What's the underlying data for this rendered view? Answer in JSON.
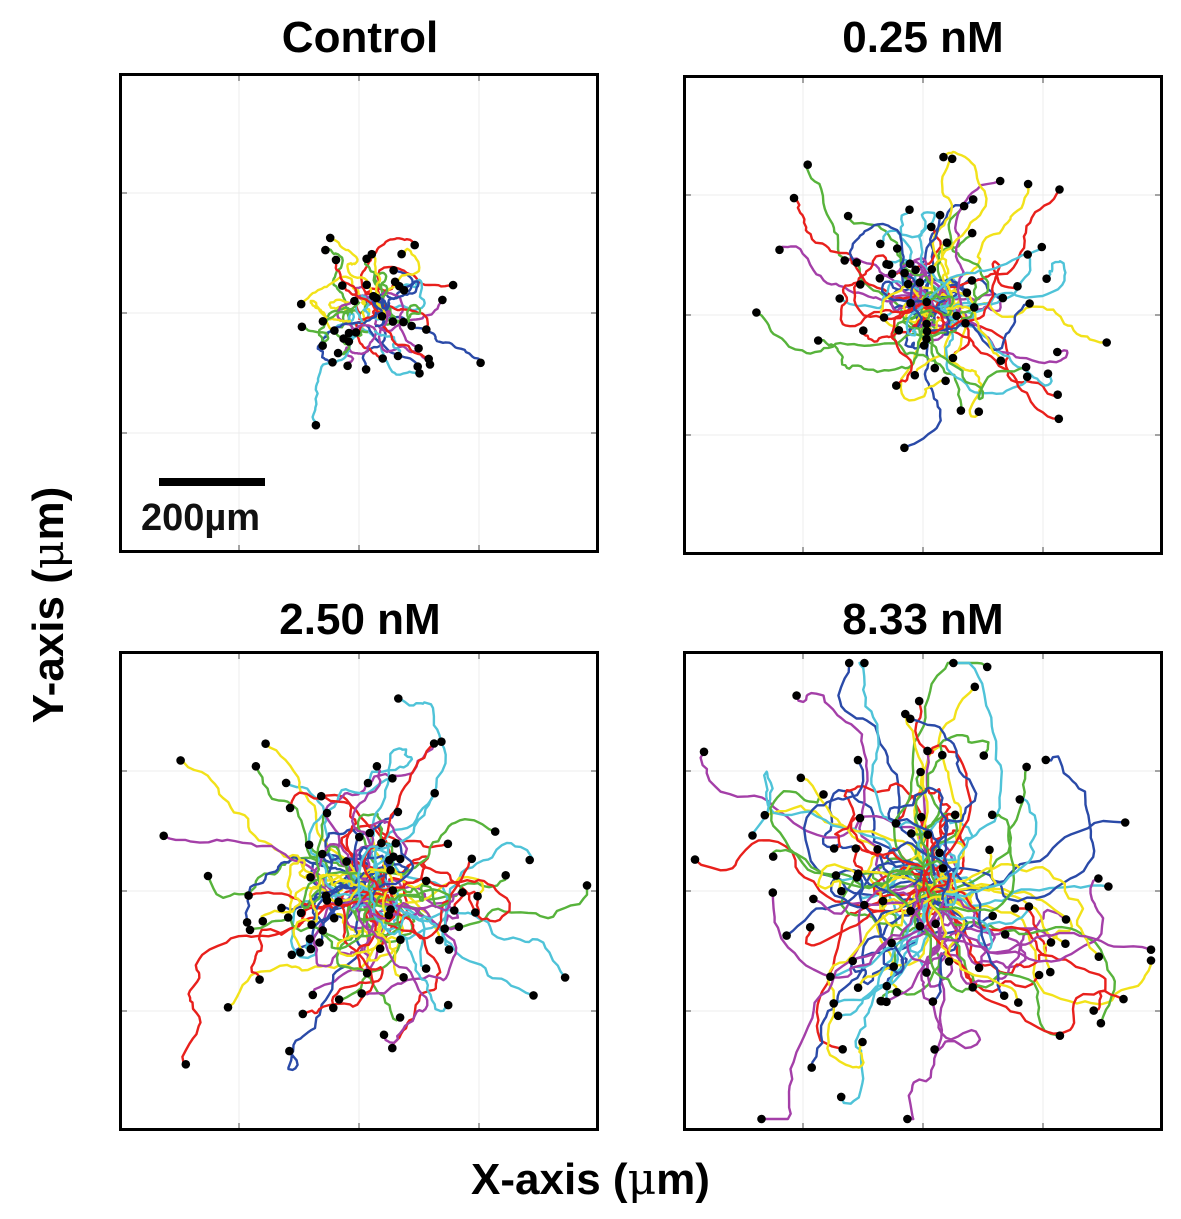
{
  "chart_data": [
    {
      "type": "scatter",
      "title": "Control",
      "n_tracks": 45,
      "spread": 0.55,
      "scale_bar": {
        "label": "200µm",
        "length_um": 200
      },
      "colors": [
        "#e8201c",
        "#2a4aa8",
        "#57b33b",
        "#f2e21a",
        "#a43fa8",
        "#4fc3d8"
      ]
    },
    {
      "type": "scatter",
      "title": "0.25 nM",
      "n_tracks": 70,
      "spread": 0.95,
      "colors": [
        "#e8201c",
        "#2a4aa8",
        "#57b33b",
        "#f2e21a",
        "#a43fa8",
        "#4fc3d8"
      ]
    },
    {
      "type": "scatter",
      "title": "2.50 nM",
      "n_tracks": 85,
      "spread": 1.2,
      "colors": [
        "#e8201c",
        "#2a4aa8",
        "#57b33b",
        "#f2e21a",
        "#a43fa8",
        "#4fc3d8"
      ]
    },
    {
      "type": "scatter",
      "title": "8.33 nM",
      "n_tracks": 95,
      "spread": 1.45,
      "colors": [
        "#e8201c",
        "#2a4aa8",
        "#57b33b",
        "#f2e21a",
        "#a43fa8",
        "#4fc3d8"
      ]
    }
  ],
  "xlabel_text": "X-axis (",
  "ylabel_text": "Y-axis (",
  "unit_mu": "μ",
  "unit_rest": "m)"
}
